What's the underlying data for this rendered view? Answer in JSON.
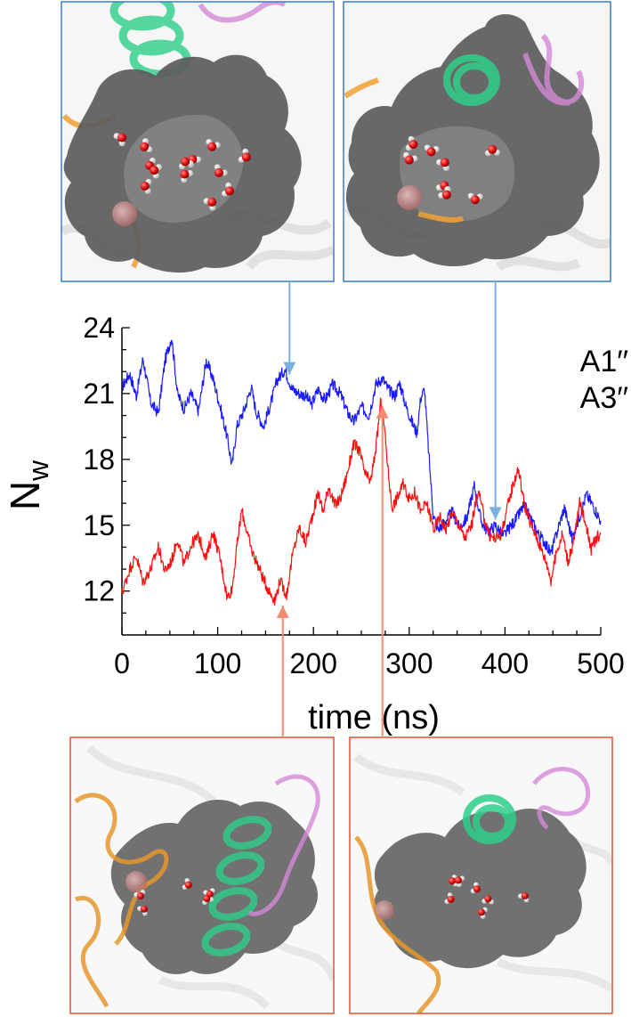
{
  "chart_data": {
    "type": "line",
    "xlabel": "time (ns)",
    "ylabel": "N",
    "ylabel_sub": "w",
    "xlim": [
      0,
      500
    ],
    "ylim": [
      10,
      24
    ],
    "x_ticks": [
      0,
      100,
      200,
      300,
      400,
      500
    ],
    "y_ticks": [
      12,
      15,
      18,
      21,
      24
    ],
    "legend_placement": "top-right",
    "series": [
      {
        "name": "A1′′",
        "color": "#1a1aff",
        "points": [
          [
            0,
            21.3
          ],
          [
            8,
            21.9
          ],
          [
            15,
            20.9
          ],
          [
            22,
            22.6
          ],
          [
            30,
            20.6
          ],
          [
            38,
            20.1
          ],
          [
            45,
            22.5
          ],
          [
            52,
            23.6
          ],
          [
            58,
            21.0
          ],
          [
            65,
            20.3
          ],
          [
            72,
            21.0
          ],
          [
            80,
            20.2
          ],
          [
            88,
            22.5
          ],
          [
            95,
            21.7
          ],
          [
            102,
            20.5
          ],
          [
            110,
            19.0
          ],
          [
            115,
            17.7
          ],
          [
            120,
            19.5
          ],
          [
            128,
            20.3
          ],
          [
            135,
            21.3
          ],
          [
            140,
            20.2
          ],
          [
            148,
            19.5
          ],
          [
            155,
            20.5
          ],
          [
            162,
            21.6
          ],
          [
            170,
            22.1
          ],
          [
            178,
            21.2
          ],
          [
            185,
            21.0
          ],
          [
            192,
            20.9
          ],
          [
            198,
            20.5
          ],
          [
            205,
            21.2
          ],
          [
            212,
            20.7
          ],
          [
            220,
            21.4
          ],
          [
            228,
            21.0
          ],
          [
            235,
            20.2
          ],
          [
            242,
            19.7
          ],
          [
            250,
            20.4
          ],
          [
            258,
            20.0
          ],
          [
            265,
            21.4
          ],
          [
            272,
            21.7
          ],
          [
            278,
            21.2
          ],
          [
            285,
            20.9
          ],
          [
            290,
            21.5
          ],
          [
            296,
            20.5
          ],
          [
            302,
            19.8
          ],
          [
            308,
            19.2
          ],
          [
            312,
            20.8
          ],
          [
            316,
            21.2
          ],
          [
            320,
            18.5
          ],
          [
            325,
            15.5
          ],
          [
            330,
            14.8
          ],
          [
            338,
            15.2
          ],
          [
            345,
            15.6
          ],
          [
            352,
            14.9
          ],
          [
            360,
            15.3
          ],
          [
            368,
            16.8
          ],
          [
            375,
            15.2
          ],
          [
            382,
            14.7
          ],
          [
            390,
            15.0
          ],
          [
            398,
            14.5
          ],
          [
            405,
            14.9
          ],
          [
            412,
            15.3
          ],
          [
            420,
            15.9
          ],
          [
            428,
            15.2
          ],
          [
            435,
            14.6
          ],
          [
            442,
            14.2
          ],
          [
            448,
            13.7
          ],
          [
            455,
            14.8
          ],
          [
            462,
            15.8
          ],
          [
            470,
            14.4
          ],
          [
            478,
            15.4
          ],
          [
            485,
            16.4
          ],
          [
            492,
            15.9
          ],
          [
            500,
            15.2
          ]
        ]
      },
      {
        "name": "A3′′",
        "color": "#ff0d0d",
        "points": [
          [
            0,
            11.9
          ],
          [
            8,
            13.0
          ],
          [
            15,
            13.6
          ],
          [
            22,
            12.4
          ],
          [
            30,
            13.0
          ],
          [
            38,
            14.0
          ],
          [
            45,
            12.9
          ],
          [
            52,
            13.4
          ],
          [
            58,
            14.4
          ],
          [
            65,
            13.2
          ],
          [
            72,
            14.1
          ],
          [
            80,
            14.5
          ],
          [
            88,
            13.5
          ],
          [
            95,
            14.7
          ],
          [
            102,
            13.6
          ],
          [
            110,
            11.7
          ],
          [
            115,
            12.1
          ],
          [
            120,
            14.0
          ],
          [
            125,
            15.7
          ],
          [
            130,
            14.8
          ],
          [
            135,
            13.9
          ],
          [
            142,
            13.2
          ],
          [
            148,
            12.5
          ],
          [
            155,
            11.9
          ],
          [
            160,
            11.6
          ],
          [
            165,
            12.5
          ],
          [
            172,
            11.8
          ],
          [
            178,
            13.6
          ],
          [
            185,
            14.9
          ],
          [
            192,
            14.2
          ],
          [
            198,
            15.3
          ],
          [
            205,
            16.5
          ],
          [
            210,
            15.6
          ],
          [
            216,
            16.8
          ],
          [
            222,
            15.9
          ],
          [
            228,
            16.2
          ],
          [
            235,
            17.3
          ],
          [
            242,
            18.7
          ],
          [
            248,
            18.4
          ],
          [
            254,
            17.3
          ],
          [
            260,
            17.0
          ],
          [
            266,
            18.8
          ],
          [
            270,
            20.6
          ],
          [
            274,
            19.5
          ],
          [
            278,
            17.5
          ],
          [
            282,
            15.8
          ],
          [
            288,
            16.3
          ],
          [
            294,
            16.9
          ],
          [
            300,
            16.2
          ],
          [
            306,
            16.5
          ],
          [
            312,
            15.6
          ],
          [
            318,
            16.0
          ],
          [
            322,
            15.4
          ],
          [
            326,
            14.8
          ],
          [
            332,
            15.4
          ],
          [
            338,
            14.8
          ],
          [
            345,
            15.6
          ],
          [
            352,
            15.0
          ],
          [
            358,
            14.4
          ],
          [
            365,
            15.0
          ],
          [
            372,
            16.6
          ],
          [
            378,
            15.4
          ],
          [
            384,
            14.5
          ],
          [
            390,
            14.4
          ],
          [
            396,
            14.6
          ],
          [
            402,
            15.7
          ],
          [
            408,
            16.8
          ],
          [
            414,
            17.6
          ],
          [
            420,
            16.0
          ],
          [
            426,
            15.1
          ],
          [
            432,
            14.6
          ],
          [
            438,
            13.9
          ],
          [
            444,
            13.2
          ],
          [
            448,
            12.5
          ],
          [
            454,
            13.8
          ],
          [
            460,
            14.6
          ],
          [
            466,
            13.3
          ],
          [
            472,
            14.3
          ],
          [
            478,
            16.0
          ],
          [
            484,
            15.2
          ],
          [
            490,
            13.9
          ],
          [
            495,
            14.4
          ],
          [
            500,
            14.6
          ]
        ]
      }
    ],
    "annotations": [
      {
        "target_x": 175,
        "target_y": 21.7,
        "series": "A1′′",
        "panel": "top-left",
        "color": "#79b0e0"
      },
      {
        "target_x": 390,
        "target_y": 15.1,
        "series": "A1′′",
        "panel": "top-right",
        "color": "#79b0e0"
      },
      {
        "target_x": 168,
        "target_y": 11.5,
        "series": "A3′′",
        "panel": "bottom-left",
        "color": "#f58a70"
      },
      {
        "target_x": 272,
        "target_y": 20.6,
        "series": "A3′′",
        "panel": "bottom-right",
        "color": "#f58a70"
      }
    ]
  },
  "panels": [
    {
      "id": "top-left",
      "border": "#3a7ec8",
      "water_count": 13
    },
    {
      "id": "top-right",
      "border": "#3a7ec8",
      "water_count": 8
    },
    {
      "id": "bottom-left",
      "border": "#e8502e",
      "water_count": 5
    },
    {
      "id": "bottom-right",
      "border": "#e8502e",
      "water_count": 7
    }
  ]
}
